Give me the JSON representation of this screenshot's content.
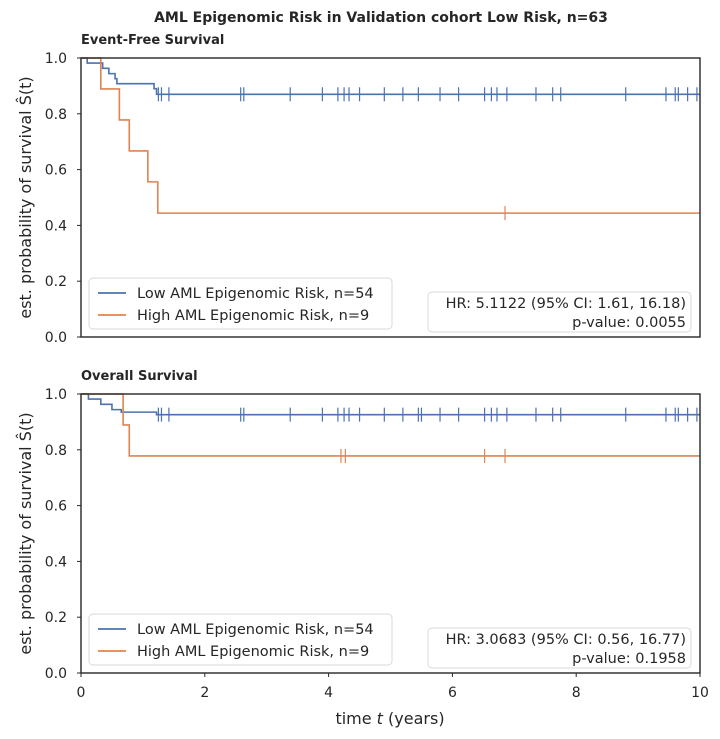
{
  "figure": {
    "suptitle": "AML Epigenomic Risk in Validation cohort Low Risk, n=63",
    "ylabel": "est. probability of survival Ŝ(t)",
    "xlabel": "time t (years)"
  },
  "chart_data": [
    {
      "type": "line",
      "title": "Event-Free Survival",
      "xlabel": "time t (years)",
      "ylabel": "est. probability of survival Ŝ(t)",
      "xlim": [
        0,
        10
      ],
      "ylim": [
        0,
        1
      ],
      "xticks": [
        0,
        2,
        4,
        6,
        8,
        10
      ],
      "yticks": [
        0.0,
        0.2,
        0.4,
        0.6,
        0.8,
        1.0
      ],
      "grid": false,
      "legend_position": "bottom-left",
      "series": [
        {
          "name": "Low AML Epigenomic Risk, n=54",
          "color": "#4c72b0",
          "steps": [
            [
              0,
              1.0
            ],
            [
              0.1,
              0.982
            ],
            [
              0.35,
              0.963
            ],
            [
              0.45,
              0.944
            ],
            [
              0.55,
              0.926
            ],
            [
              0.58,
              0.908
            ],
            [
              1.18,
              0.89
            ],
            [
              1.22,
              0.87
            ]
          ],
          "censored": [
            1.25,
            1.3,
            1.42,
            2.58,
            2.63,
            3.38,
            3.9,
            4.15,
            4.25,
            4.33,
            4.5,
            4.9,
            5.2,
            5.45,
            5.8,
            6.1,
            6.52,
            6.63,
            6.72,
            6.88,
            7.35,
            7.62,
            7.75,
            8.8,
            9.45,
            9.6,
            9.65,
            9.8,
            9.95
          ],
          "end": 10
        },
        {
          "name": "High AML Epigenomic Risk, n=9",
          "color": "#dd8452",
          "steps": [
            [
              0,
              1.0
            ],
            [
              0.32,
              0.889
            ],
            [
              0.62,
              0.778
            ],
            [
              0.78,
              0.667
            ],
            [
              1.08,
              0.556
            ],
            [
              1.24,
              0.444
            ]
          ],
          "censored": [
            6.85
          ],
          "end": 10
        }
      ],
      "annotation": {
        "hr": "HR: 5.1122 (95% CI: 1.61, 16.18)",
        "p": "p-value: 0.0055"
      }
    },
    {
      "type": "line",
      "title": "Overall Survival",
      "xlabel": "time t (years)",
      "ylabel": "est. probability of survival Ŝ(t)",
      "xlim": [
        0,
        10
      ],
      "ylim": [
        0,
        1
      ],
      "xticks": [
        0,
        2,
        4,
        6,
        8,
        10
      ],
      "yticks": [
        0.0,
        0.2,
        0.4,
        0.6,
        0.8,
        1.0
      ],
      "grid": false,
      "legend_position": "bottom-left",
      "series": [
        {
          "name": "Low AML Epigenomic Risk, n=54",
          "color": "#4c72b0",
          "steps": [
            [
              0,
              1.0
            ],
            [
              0.12,
              0.982
            ],
            [
              0.32,
              0.963
            ],
            [
              0.5,
              0.944
            ],
            [
              0.65,
              0.935
            ],
            [
              1.22,
              0.926
            ]
          ],
          "censored": [
            1.25,
            1.3,
            1.42,
            2.58,
            2.63,
            3.38,
            3.9,
            4.15,
            4.25,
            4.33,
            4.5,
            4.9,
            5.2,
            5.45,
            5.5,
            5.8,
            6.1,
            6.52,
            6.63,
            6.72,
            6.88,
            7.35,
            7.62,
            7.75,
            8.8,
            9.45,
            9.6,
            9.65,
            9.8,
            9.95
          ],
          "end": 10
        },
        {
          "name": "High AML Epigenomic Risk, n=9",
          "color": "#dd8452",
          "steps": [
            [
              0,
              1.0
            ],
            [
              0.68,
              0.889
            ],
            [
              0.78,
              0.778
            ]
          ],
          "censored": [
            4.2,
            4.27,
            6.52,
            6.85
          ],
          "end": 10
        }
      ],
      "annotation": {
        "hr": "HR: 3.0683 (95% CI: 0.56, 16.77)",
        "p": "p-value: 0.1958"
      }
    }
  ]
}
